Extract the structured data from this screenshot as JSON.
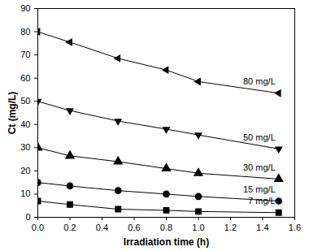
{
  "chart_data": {
    "type": "line",
    "x_label": "Irradiation time (h)",
    "y_label": "Ct (mg/L)",
    "x": [
      0,
      0.2,
      0.5,
      0.8,
      1.0,
      1.5
    ],
    "series": [
      {
        "name": "80 mg/L",
        "color": "#000000",
        "marker": "triangle-left",
        "values": [
          80,
          75.5,
          68.5,
          63.5,
          58.5,
          53.5
        ]
      },
      {
        "name": "50 mg/L",
        "color": "#000000",
        "marker": "triangle-down",
        "values": [
          50,
          46,
          41.5,
          38,
          35.5,
          29.5
        ]
      },
      {
        "name": "30 mg/L",
        "color": "#000000",
        "marker": "triangle-up",
        "values": [
          30,
          26.5,
          24,
          21,
          19,
          16.5
        ]
      },
      {
        "name": "15 mg/L",
        "color": "#000000",
        "marker": "circle",
        "values": [
          15,
          13.5,
          11.5,
          10,
          9,
          7
        ]
      },
      {
        "name": "7 mg/L",
        "color": "#000000",
        "marker": "square",
        "values": [
          7,
          5.5,
          3.5,
          3,
          2.5,
          2
        ]
      }
    ],
    "xlim": [
      0,
      1.6
    ],
    "xticks": [
      {
        "value": 0,
        "label": "0.0"
      },
      0.2,
      0.4,
      0.6,
      0.8,
      {
        "value": 1,
        "label": "1.0"
      },
      1.2,
      1.4,
      1.6
    ],
    "ylim": [
      0,
      90
    ],
    "yticks": [
      0,
      10,
      20,
      30,
      40,
      50,
      60,
      70,
      80,
      90
    ],
    "grid": false
  }
}
